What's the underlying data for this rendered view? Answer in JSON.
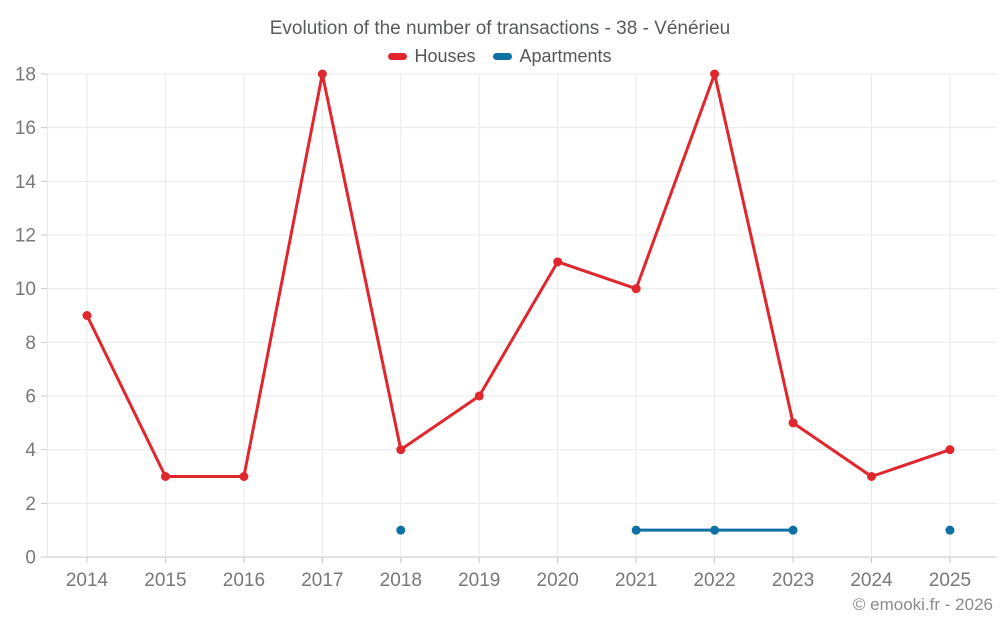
{
  "header": {
    "title": "Evolution of the number of transactions - 38 - Vénérieu"
  },
  "legend": {
    "items": [
      {
        "label": "Houses",
        "color": "#e0272e"
      },
      {
        "label": "Apartments",
        "color": "#0f70a4"
      }
    ]
  },
  "footer": {
    "copyright": "© emooki.fr - 2026"
  },
  "colors": {
    "houses_series": "#e0272e",
    "apartments_series": "#0f70a4",
    "axis_text": "#77787b",
    "title_text": "#595a5c",
    "gridline": "#e9e9e9",
    "axis_line": "#c8c8c8"
  },
  "chart_data": {
    "type": "line",
    "title": "Evolution of the number of transactions - 38 - Vénérieu",
    "categories": [
      "2014",
      "2015",
      "2016",
      "2017",
      "2018",
      "2019",
      "2020",
      "2021",
      "2022",
      "2023",
      "2024",
      "2025"
    ],
    "series": [
      {
        "name": "Houses",
        "color": "#e0272e",
        "values": [
          9,
          3,
          3,
          18,
          4,
          6,
          11,
          10,
          18,
          5,
          3,
          4
        ]
      },
      {
        "name": "Apartments",
        "color": "#0f70a4",
        "values": [
          null,
          null,
          null,
          null,
          1,
          null,
          null,
          1,
          1,
          1,
          null,
          1
        ]
      }
    ],
    "xlabel": "",
    "ylabel": "",
    "ylim": [
      0,
      18
    ],
    "ytick_step": 2,
    "grid": true,
    "legend_position": "top",
    "annotations": [
      "© emooki.fr - 2026"
    ]
  }
}
